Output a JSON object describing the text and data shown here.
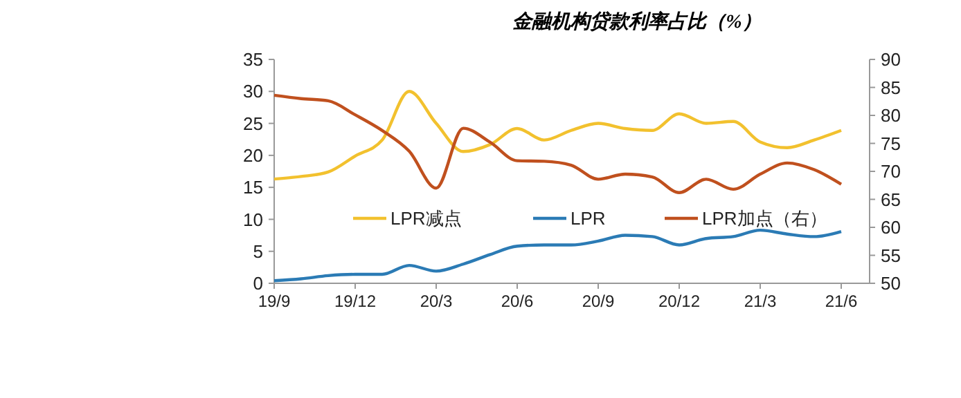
{
  "chart_data": {
    "type": "line",
    "title": "金融机构贷款利率占比（%）",
    "categories": [
      "19/9",
      null,
      null,
      "19/12",
      null,
      null,
      "20/3",
      null,
      null,
      "20/6",
      null,
      null,
      "20/9",
      null,
      null,
      "20/12",
      null,
      null,
      "21/3",
      null,
      null,
      "21/6"
    ],
    "series": [
      {
        "name": "LPR减点",
        "color": "#f2c12e",
        "values": [
          16.3,
          16.7,
          17.4,
          19.9,
          22.4,
          30.0,
          25.0,
          20.6,
          21.7,
          24.2,
          22.4,
          23.9,
          25.0,
          24.2,
          23.9,
          26.5,
          25.0,
          25.3,
          22.1,
          21.2,
          22.4,
          23.9
        ]
      },
      {
        "name": "LPR",
        "color": "#2b7bb5",
        "values": [
          0.4,
          0.7,
          1.2,
          1.4,
          1.4,
          2.8,
          1.9,
          3.0,
          4.5,
          5.8,
          6.0,
          6.0,
          6.6,
          7.5,
          7.3,
          6.0,
          7.0,
          7.3,
          8.3,
          7.7,
          7.3,
          8.1
        ]
      },
      {
        "name": "LPR加点（右）",
        "color": "#c0501e",
        "axis": "y2",
        "values": [
          83.6,
          83.0,
          82.6,
          80.1,
          77.3,
          73.6,
          67.0,
          77.7,
          75.2,
          71.9,
          71.8,
          71.1,
          68.6,
          69.5,
          69.0,
          66.2,
          68.6,
          66.8,
          69.5,
          71.5,
          70.3,
          67.7
        ]
      }
    ],
    "ylim": [
      0,
      35
    ],
    "yticks": [
      0,
      5,
      10,
      15,
      20,
      25,
      30,
      35
    ],
    "y2lim": [
      50,
      90
    ],
    "y2ticks": [
      50,
      55,
      60,
      65,
      70,
      75,
      80,
      85,
      90
    ],
    "legend": "center",
    "grid": false,
    "marker": "none",
    "line_style": "solid"
  }
}
